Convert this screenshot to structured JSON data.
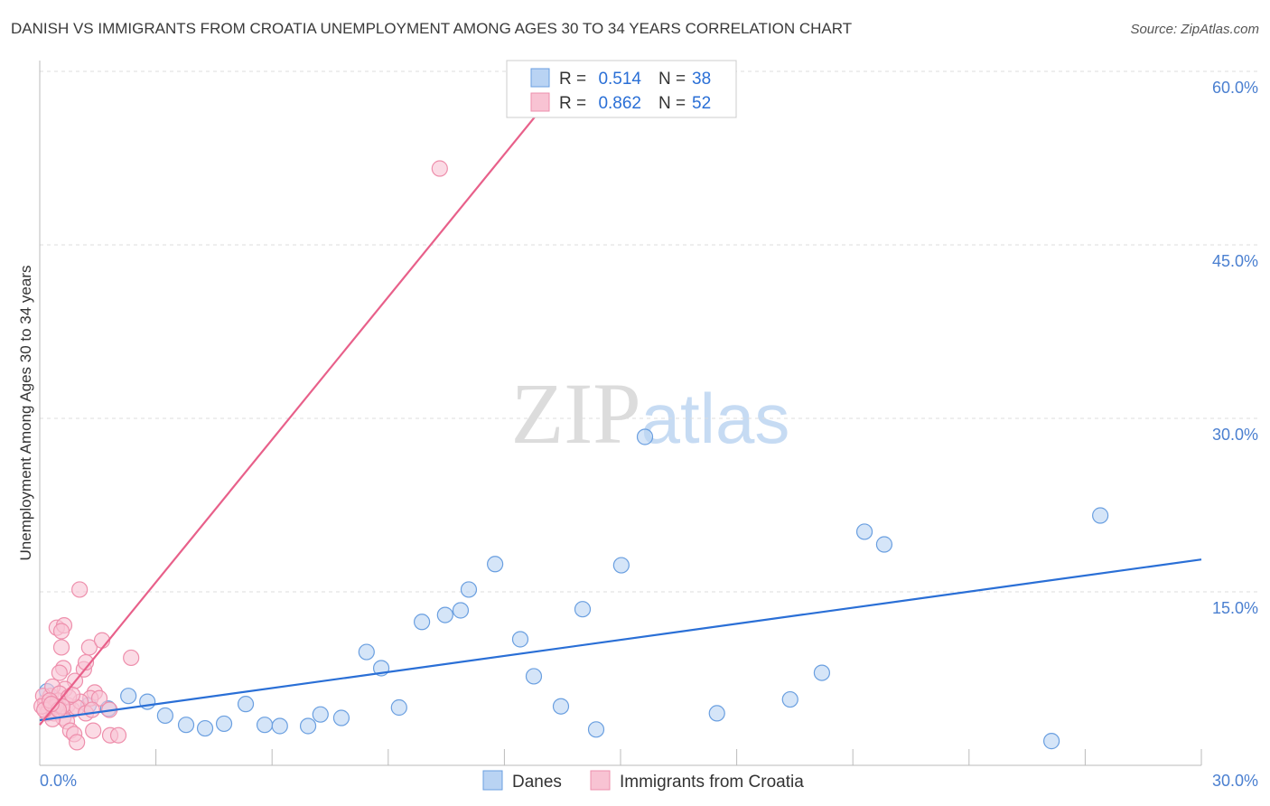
{
  "title": "DANISH VS IMMIGRANTS FROM CROATIA UNEMPLOYMENT AMONG AGES 30 TO 34 YEARS CORRELATION CHART",
  "source": "Source: ZipAtlas.com",
  "watermark": "ZIPatlas",
  "chart_data": {
    "type": "scatter",
    "ylabel": "Unemployment Among Ages 30 to 34 years",
    "xlim": [
      0,
      30
    ],
    "ylim": [
      0,
      60
    ],
    "x_tick_labels": [
      "0.0%",
      "30.0%"
    ],
    "y_ticks": [
      15,
      30,
      45,
      60
    ],
    "y_tick_labels": [
      "15.0%",
      "30.0%",
      "45.0%",
      "60.0%"
    ],
    "legend": [
      {
        "name": "Danes",
        "r_label": "R = ",
        "r": "0.514",
        "n_label": "N = ",
        "n": "38"
      },
      {
        "name": "Immigrants from Croatia",
        "r_label": "R = ",
        "r": "0.862",
        "n_label": "N = ",
        "n": "52"
      }
    ],
    "series": [
      {
        "name": "Danes",
        "color": "#6a9fe0",
        "fill": "#b9d3f3",
        "trend_color": "#2a6fd6",
        "trend": [
          [
            0,
            3.9
          ],
          [
            30,
            17.8
          ]
        ],
        "points": [
          [
            0.19,
            6.4
          ],
          [
            0.37,
            5.2
          ],
          [
            1.26,
            5.2
          ],
          [
            1.77,
            4.9
          ],
          [
            2.29,
            6.0
          ],
          [
            2.78,
            5.5
          ],
          [
            3.24,
            4.3
          ],
          [
            3.78,
            3.5
          ],
          [
            4.27,
            3.2
          ],
          [
            4.76,
            3.6
          ],
          [
            5.32,
            5.3
          ],
          [
            5.81,
            3.5
          ],
          [
            6.2,
            3.4
          ],
          [
            6.93,
            3.4
          ],
          [
            7.25,
            4.4
          ],
          [
            7.79,
            4.1
          ],
          [
            8.44,
            9.8
          ],
          [
            8.82,
            8.4
          ],
          [
            9.28,
            5.0
          ],
          [
            9.87,
            12.4
          ],
          [
            10.47,
            13.0
          ],
          [
            10.87,
            13.4
          ],
          [
            11.08,
            15.2
          ],
          [
            11.76,
            17.4
          ],
          [
            12.41,
            10.9
          ],
          [
            12.76,
            7.7
          ],
          [
            13.46,
            5.1
          ],
          [
            14.02,
            13.5
          ],
          [
            14.37,
            3.1
          ],
          [
            15.02,
            17.3
          ],
          [
            15.63,
            28.4
          ],
          [
            17.49,
            4.5
          ],
          [
            19.38,
            5.7
          ],
          [
            20.2,
            8.0
          ],
          [
            21.3,
            20.2
          ],
          [
            21.81,
            19.1
          ],
          [
            26.13,
            2.1
          ],
          [
            27.39,
            21.6
          ]
        ]
      },
      {
        "name": "Immigrants from Croatia",
        "color": "#ee8fac",
        "fill": "#f8c3d3",
        "trend_color": "#e8608a",
        "trend": [
          [
            0,
            3.5
          ],
          [
            13.72,
            59.9
          ]
        ],
        "points": [
          [
            10.33,
            51.6
          ],
          [
            1.03,
            15.2
          ],
          [
            0.44,
            11.9
          ],
          [
            0.63,
            12.1
          ],
          [
            0.56,
            11.6
          ],
          [
            0.56,
            10.2
          ],
          [
            1.28,
            10.2
          ],
          [
            1.61,
            10.8
          ],
          [
            2.36,
            9.3
          ],
          [
            0.61,
            8.4
          ],
          [
            0.51,
            8.0
          ],
          [
            1.14,
            8.3
          ],
          [
            1.19,
            8.9
          ],
          [
            0.91,
            7.3
          ],
          [
            0.65,
            6.6
          ],
          [
            1.42,
            6.3
          ],
          [
            1.31,
            5.8
          ],
          [
            1.8,
            4.8
          ],
          [
            0.28,
            6.0
          ],
          [
            0.14,
            5.4
          ],
          [
            0.23,
            4.8
          ],
          [
            0.37,
            4.5
          ],
          [
            0.47,
            5.6
          ],
          [
            0.72,
            5.2
          ],
          [
            0.84,
            4.8
          ],
          [
            0.61,
            4.1
          ],
          [
            0.7,
            3.8
          ],
          [
            0.79,
            3.0
          ],
          [
            0.89,
            2.7
          ],
          [
            0.96,
            2.0
          ],
          [
            1.38,
            3.0
          ],
          [
            1.82,
            2.6
          ],
          [
            2.03,
            2.6
          ],
          [
            0.09,
            6.0
          ],
          [
            0.19,
            4.5
          ],
          [
            0.33,
            6.8
          ],
          [
            0.51,
            6.2
          ],
          [
            1.05,
            5.5
          ],
          [
            0.96,
            5.0
          ],
          [
            0.05,
            5.1
          ],
          [
            0.42,
            5.1
          ],
          [
            0.75,
            5.9
          ],
          [
            1.54,
            5.8
          ],
          [
            0.33,
            4.0
          ],
          [
            1.19,
            4.5
          ],
          [
            0.12,
            4.8
          ],
          [
            0.58,
            5.1
          ],
          [
            0.84,
            6.1
          ],
          [
            0.26,
            5.6
          ],
          [
            1.35,
            4.8
          ],
          [
            0.49,
            4.8
          ],
          [
            0.3,
            5.3
          ]
        ]
      }
    ]
  }
}
